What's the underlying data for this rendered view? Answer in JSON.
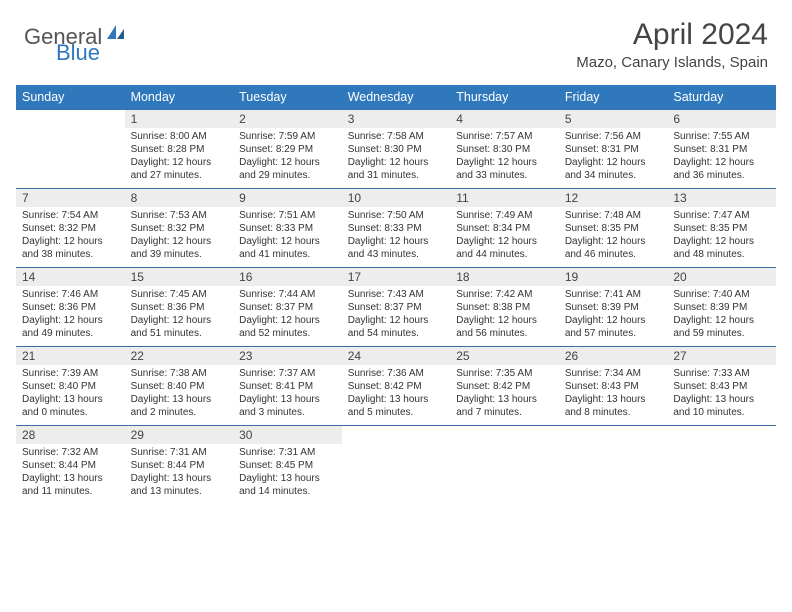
{
  "logo": {
    "text1": "General",
    "text2": "Blue"
  },
  "title": "April 2024",
  "location": "Mazo, Canary Islands, Spain",
  "colors": {
    "header_bg": "#2f78bc",
    "header_text": "#ffffff",
    "daynum_bg": "#ededed",
    "row_border": "#3a6fa5",
    "body_text": "#333333",
    "logo_gray": "#555555",
    "logo_blue": "#2f78bc"
  },
  "typography": {
    "title_fontsize": 30,
    "location_fontsize": 15,
    "header_fontsize": 12.5,
    "daynum_fontsize": 12,
    "detail_fontsize": 10
  },
  "weekdays": [
    "Sunday",
    "Monday",
    "Tuesday",
    "Wednesday",
    "Thursday",
    "Friday",
    "Saturday"
  ],
  "weeks": [
    {
      "nums": [
        "",
        "1",
        "2",
        "3",
        "4",
        "5",
        "6"
      ],
      "details": [
        "",
        "Sunrise: 8:00 AM\nSunset: 8:28 PM\nDaylight: 12 hours and 27 minutes.",
        "Sunrise: 7:59 AM\nSunset: 8:29 PM\nDaylight: 12 hours and 29 minutes.",
        "Sunrise: 7:58 AM\nSunset: 8:30 PM\nDaylight: 12 hours and 31 minutes.",
        "Sunrise: 7:57 AM\nSunset: 8:30 PM\nDaylight: 12 hours and 33 minutes.",
        "Sunrise: 7:56 AM\nSunset: 8:31 PM\nDaylight: 12 hours and 34 minutes.",
        "Sunrise: 7:55 AM\nSunset: 8:31 PM\nDaylight: 12 hours and 36 minutes."
      ]
    },
    {
      "nums": [
        "7",
        "8",
        "9",
        "10",
        "11",
        "12",
        "13"
      ],
      "details": [
        "Sunrise: 7:54 AM\nSunset: 8:32 PM\nDaylight: 12 hours and 38 minutes.",
        "Sunrise: 7:53 AM\nSunset: 8:32 PM\nDaylight: 12 hours and 39 minutes.",
        "Sunrise: 7:51 AM\nSunset: 8:33 PM\nDaylight: 12 hours and 41 minutes.",
        "Sunrise: 7:50 AM\nSunset: 8:33 PM\nDaylight: 12 hours and 43 minutes.",
        "Sunrise: 7:49 AM\nSunset: 8:34 PM\nDaylight: 12 hours and 44 minutes.",
        "Sunrise: 7:48 AM\nSunset: 8:35 PM\nDaylight: 12 hours and 46 minutes.",
        "Sunrise: 7:47 AM\nSunset: 8:35 PM\nDaylight: 12 hours and 48 minutes."
      ]
    },
    {
      "nums": [
        "14",
        "15",
        "16",
        "17",
        "18",
        "19",
        "20"
      ],
      "details": [
        "Sunrise: 7:46 AM\nSunset: 8:36 PM\nDaylight: 12 hours and 49 minutes.",
        "Sunrise: 7:45 AM\nSunset: 8:36 PM\nDaylight: 12 hours and 51 minutes.",
        "Sunrise: 7:44 AM\nSunset: 8:37 PM\nDaylight: 12 hours and 52 minutes.",
        "Sunrise: 7:43 AM\nSunset: 8:37 PM\nDaylight: 12 hours and 54 minutes.",
        "Sunrise: 7:42 AM\nSunset: 8:38 PM\nDaylight: 12 hours and 56 minutes.",
        "Sunrise: 7:41 AM\nSunset: 8:39 PM\nDaylight: 12 hours and 57 minutes.",
        "Sunrise: 7:40 AM\nSunset: 8:39 PM\nDaylight: 12 hours and 59 minutes."
      ]
    },
    {
      "nums": [
        "21",
        "22",
        "23",
        "24",
        "25",
        "26",
        "27"
      ],
      "details": [
        "Sunrise: 7:39 AM\nSunset: 8:40 PM\nDaylight: 13 hours and 0 minutes.",
        "Sunrise: 7:38 AM\nSunset: 8:40 PM\nDaylight: 13 hours and 2 minutes.",
        "Sunrise: 7:37 AM\nSunset: 8:41 PM\nDaylight: 13 hours and 3 minutes.",
        "Sunrise: 7:36 AM\nSunset: 8:42 PM\nDaylight: 13 hours and 5 minutes.",
        "Sunrise: 7:35 AM\nSunset: 8:42 PM\nDaylight: 13 hours and 7 minutes.",
        "Sunrise: 7:34 AM\nSunset: 8:43 PM\nDaylight: 13 hours and 8 minutes.",
        "Sunrise: 7:33 AM\nSunset: 8:43 PM\nDaylight: 13 hours and 10 minutes."
      ]
    },
    {
      "nums": [
        "28",
        "29",
        "30",
        "",
        "",
        "",
        ""
      ],
      "details": [
        "Sunrise: 7:32 AM\nSunset: 8:44 PM\nDaylight: 13 hours and 11 minutes.",
        "Sunrise: 7:31 AM\nSunset: 8:44 PM\nDaylight: 13 hours and 13 minutes.",
        "Sunrise: 7:31 AM\nSunset: 8:45 PM\nDaylight: 13 hours and 14 minutes.",
        "",
        "",
        "",
        ""
      ]
    }
  ]
}
